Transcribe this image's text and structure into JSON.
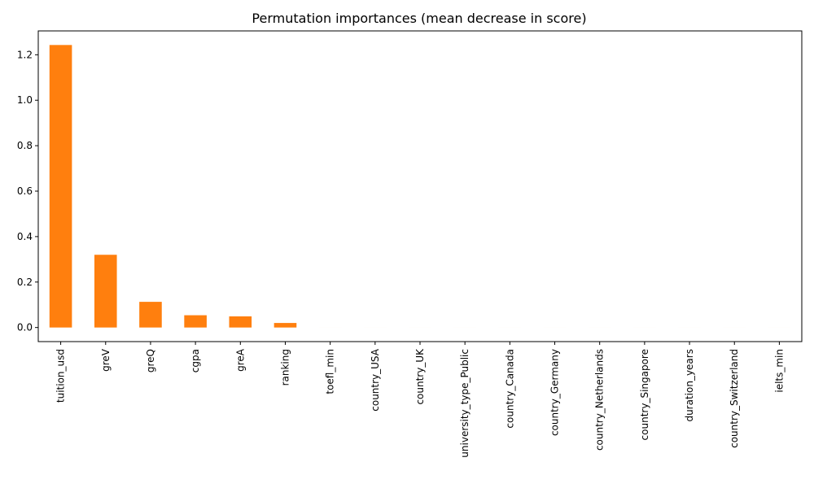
{
  "chart_data": {
    "type": "bar",
    "title": "Permutation importances (mean decrease in score)",
    "xlabel": "",
    "ylabel": "",
    "categories": [
      "tuition_usd",
      "greV",
      "greQ",
      "cgpa",
      "greA",
      "ranking",
      "toefl_min",
      "country_USA",
      "country_UK",
      "university_type_Public",
      "country_Canada",
      "country_Germany",
      "country_Netherlands",
      "country_Singapore",
      "duration_years",
      "country_Switzerland",
      "ielts_min"
    ],
    "values": [
      1.243,
      0.32,
      0.113,
      0.054,
      0.049,
      0.02,
      0.0,
      0.0,
      0.0,
      0.0,
      0.0,
      0.0,
      0.0,
      0.0,
      0.0,
      0.0,
      0.0
    ],
    "ylim": [
      -0.062,
      1.305
    ],
    "yticks": [
      0.0,
      0.2,
      0.4,
      0.6,
      0.8,
      1.0,
      1.2
    ],
    "bar_color": "#ff7f0e",
    "grid": false,
    "legend": "none"
  }
}
